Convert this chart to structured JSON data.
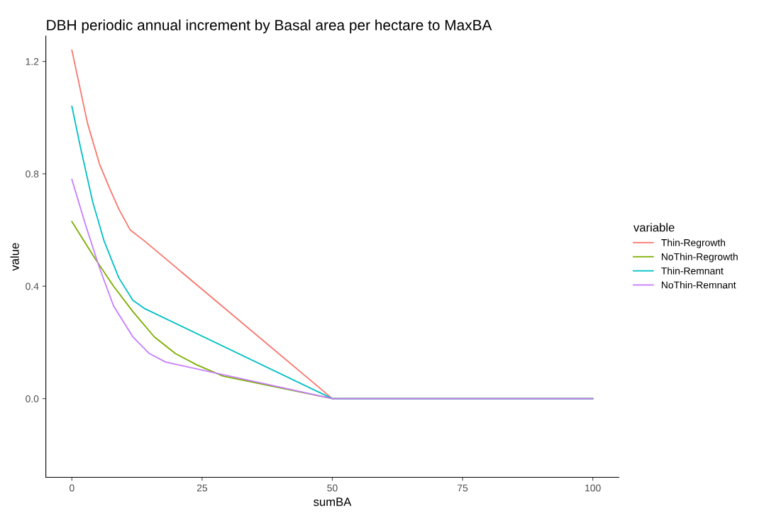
{
  "chart_data": {
    "type": "line",
    "title": "DBH periodic annual increment by Basal area per hectare to MaxBA",
    "xlabel": "sumBA",
    "ylabel": "value",
    "legend_title": "variable",
    "legend": "right",
    "grid": false,
    "xlim": [
      -5,
      105
    ],
    "ylim": [
      -0.28,
      1.29
    ],
    "xticks": [
      0,
      25,
      50,
      75,
      100
    ],
    "yticks": [
      {
        "value": 0,
        "label": "0.0"
      },
      {
        "value": 0.4,
        "label": "0.4"
      },
      {
        "value": 0.8,
        "label": "0.8"
      },
      {
        "value": 1.2,
        "label": "1.2"
      }
    ],
    "series": [
      {
        "name": "Thin-Regrowth",
        "color": "#f8766d",
        "x": [
          0,
          3,
          5.3,
          7.2,
          9,
          11.2,
          14,
          50,
          100
        ],
        "values": [
          1.24,
          0.98,
          0.835,
          0.75,
          0.675,
          0.6,
          0.56,
          0,
          0
        ]
      },
      {
        "name": "NoThin-Regrowth",
        "color": "#7cae00",
        "x": [
          0,
          4.4,
          8,
          11.7,
          15.8,
          19.9,
          24,
          29,
          50,
          100
        ],
        "values": [
          0.63,
          0.5,
          0.4,
          0.31,
          0.22,
          0.16,
          0.12,
          0.08,
          0,
          0
        ]
      },
      {
        "name": "Thin-Remnant",
        "color": "#00bfc4",
        "x": [
          0,
          1.7,
          4,
          6.2,
          9,
          11.7,
          14,
          50,
          100
        ],
        "values": [
          1.04,
          0.89,
          0.7,
          0.56,
          0.43,
          0.35,
          0.32,
          0,
          0
        ]
      },
      {
        "name": "NoThin-Remnant",
        "color": "#c77cff",
        "x": [
          0,
          2.6,
          5.3,
          8,
          11.7,
          14.9,
          18,
          50,
          100
        ],
        "values": [
          0.78,
          0.62,
          0.465,
          0.33,
          0.22,
          0.16,
          0.13,
          0,
          0
        ]
      }
    ]
  }
}
